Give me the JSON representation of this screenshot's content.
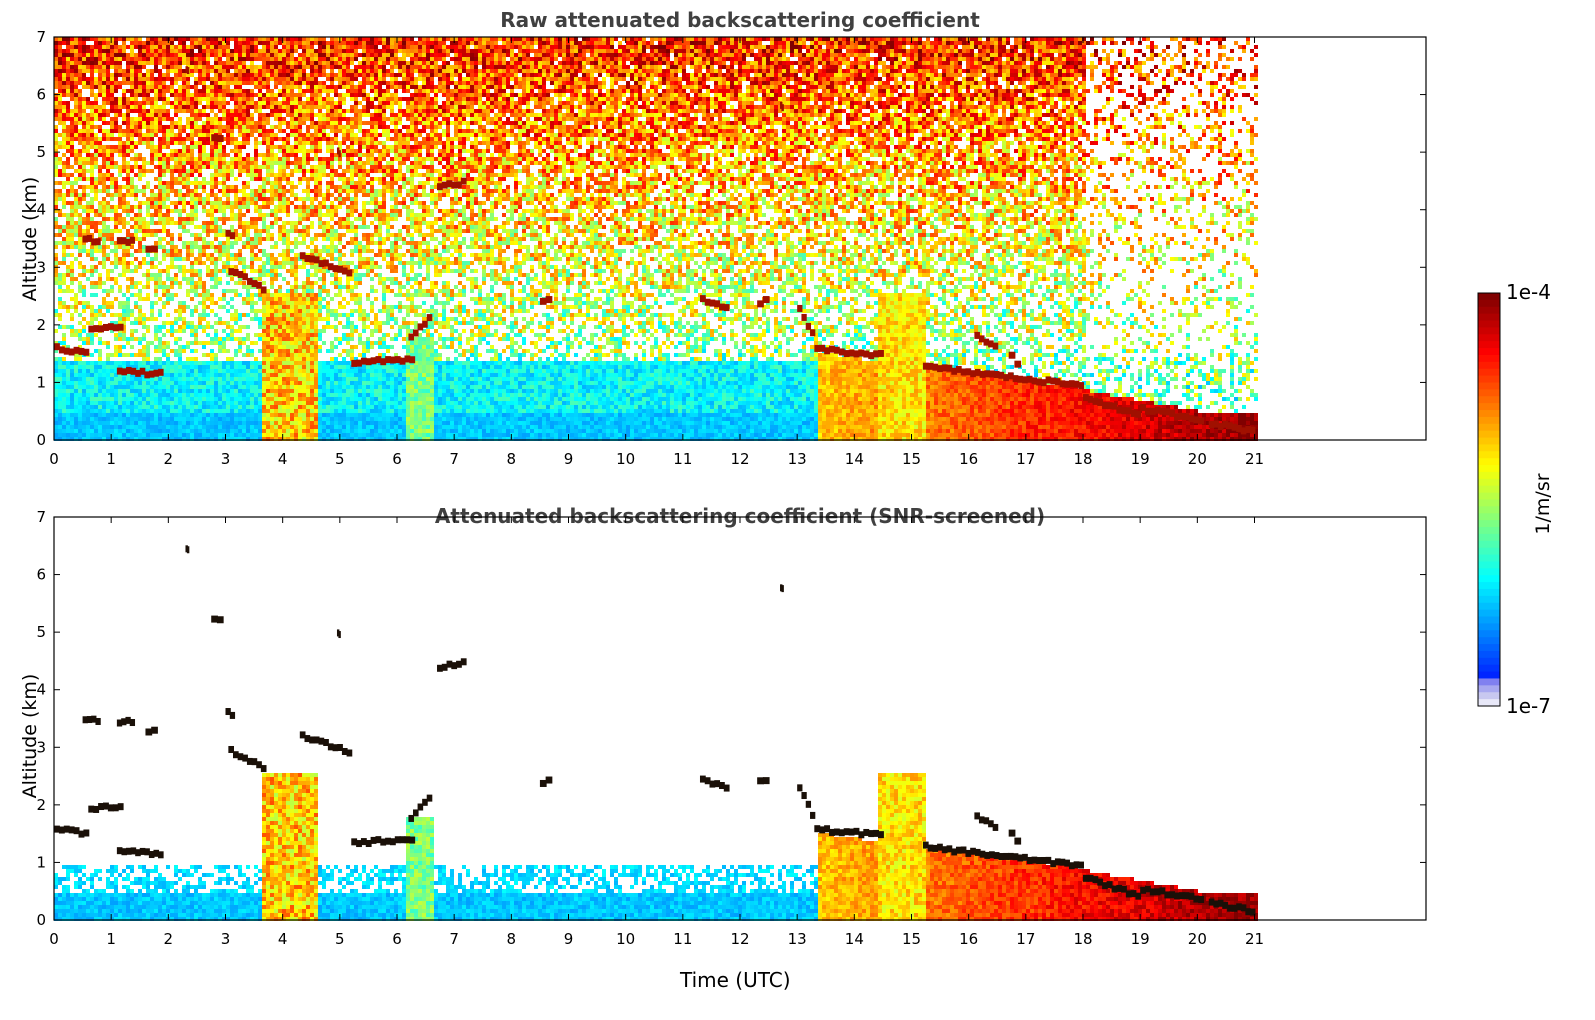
{
  "chart_data": [
    {
      "type": "heatmap",
      "title": "Raw attenuated backscattering coefficient",
      "xlabel": "",
      "ylabel": "Altitude (km)",
      "xlim": [
        0,
        24
      ],
      "ylim": [
        0,
        7
      ],
      "xticks": [
        "0",
        "1",
        "2",
        "3",
        "4",
        "5",
        "6",
        "7",
        "8",
        "9",
        "10",
        "11",
        "12",
        "13",
        "14",
        "15",
        "16",
        "17",
        "18",
        "19",
        "20",
        "21"
      ],
      "yticks": [
        "0",
        "1",
        "2",
        "3",
        "4",
        "5",
        "6",
        "7"
      ],
      "data_extent_hours": [
        0,
        21
      ],
      "screened": false,
      "features": [
        {
          "name": "near-surface aerosol layer",
          "x": [
            0,
            21
          ],
          "y_top_km": 0.5
        },
        {
          "name": "low cloud layer",
          "x": [
            0,
            1.2
          ],
          "y_km": 1.55
        },
        {
          "name": "cloud",
          "x": [
            5.2,
            6.3
          ],
          "y_km": 1.4
        },
        {
          "name": "boundary layer plume",
          "x": [
            3.6,
            4.6
          ],
          "y_top_km": 2.6
        },
        {
          "name": "boundary layer",
          "x": [
            13.3,
            21
          ],
          "y_top_km": 1.5
        },
        {
          "name": "elevated cloud",
          "x": [
            6.7,
            7.2
          ],
          "y_km": 4.45
        }
      ]
    },
    {
      "type": "heatmap",
      "title": "Attenuated backscattering coefficient (SNR-screened)",
      "xlabel": "Time (UTC)",
      "ylabel": "Altitude (km)",
      "xlim": [
        0,
        24
      ],
      "ylim": [
        0,
        7
      ],
      "xticks": [
        "0",
        "1",
        "2",
        "3",
        "4",
        "5",
        "6",
        "7",
        "8",
        "9",
        "10",
        "11",
        "12",
        "13",
        "14",
        "15",
        "16",
        "17",
        "18",
        "19",
        "20",
        "21"
      ],
      "yticks": [
        "0",
        "1",
        "2",
        "3",
        "4",
        "5",
        "6",
        "7"
      ],
      "data_extent_hours": [
        0,
        21
      ],
      "screened": true
    }
  ],
  "colorbar": {
    "min_label": "1e-7",
    "max_label": "1e-4",
    "unit": "1/m/sr",
    "scale": "log",
    "colormap": "jet",
    "colors": [
      "#e8e8f8",
      "#0000ff",
      "#00bfff",
      "#7fff7f",
      "#ffff00",
      "#ff7f00",
      "#ff0000",
      "#800000"
    ]
  }
}
